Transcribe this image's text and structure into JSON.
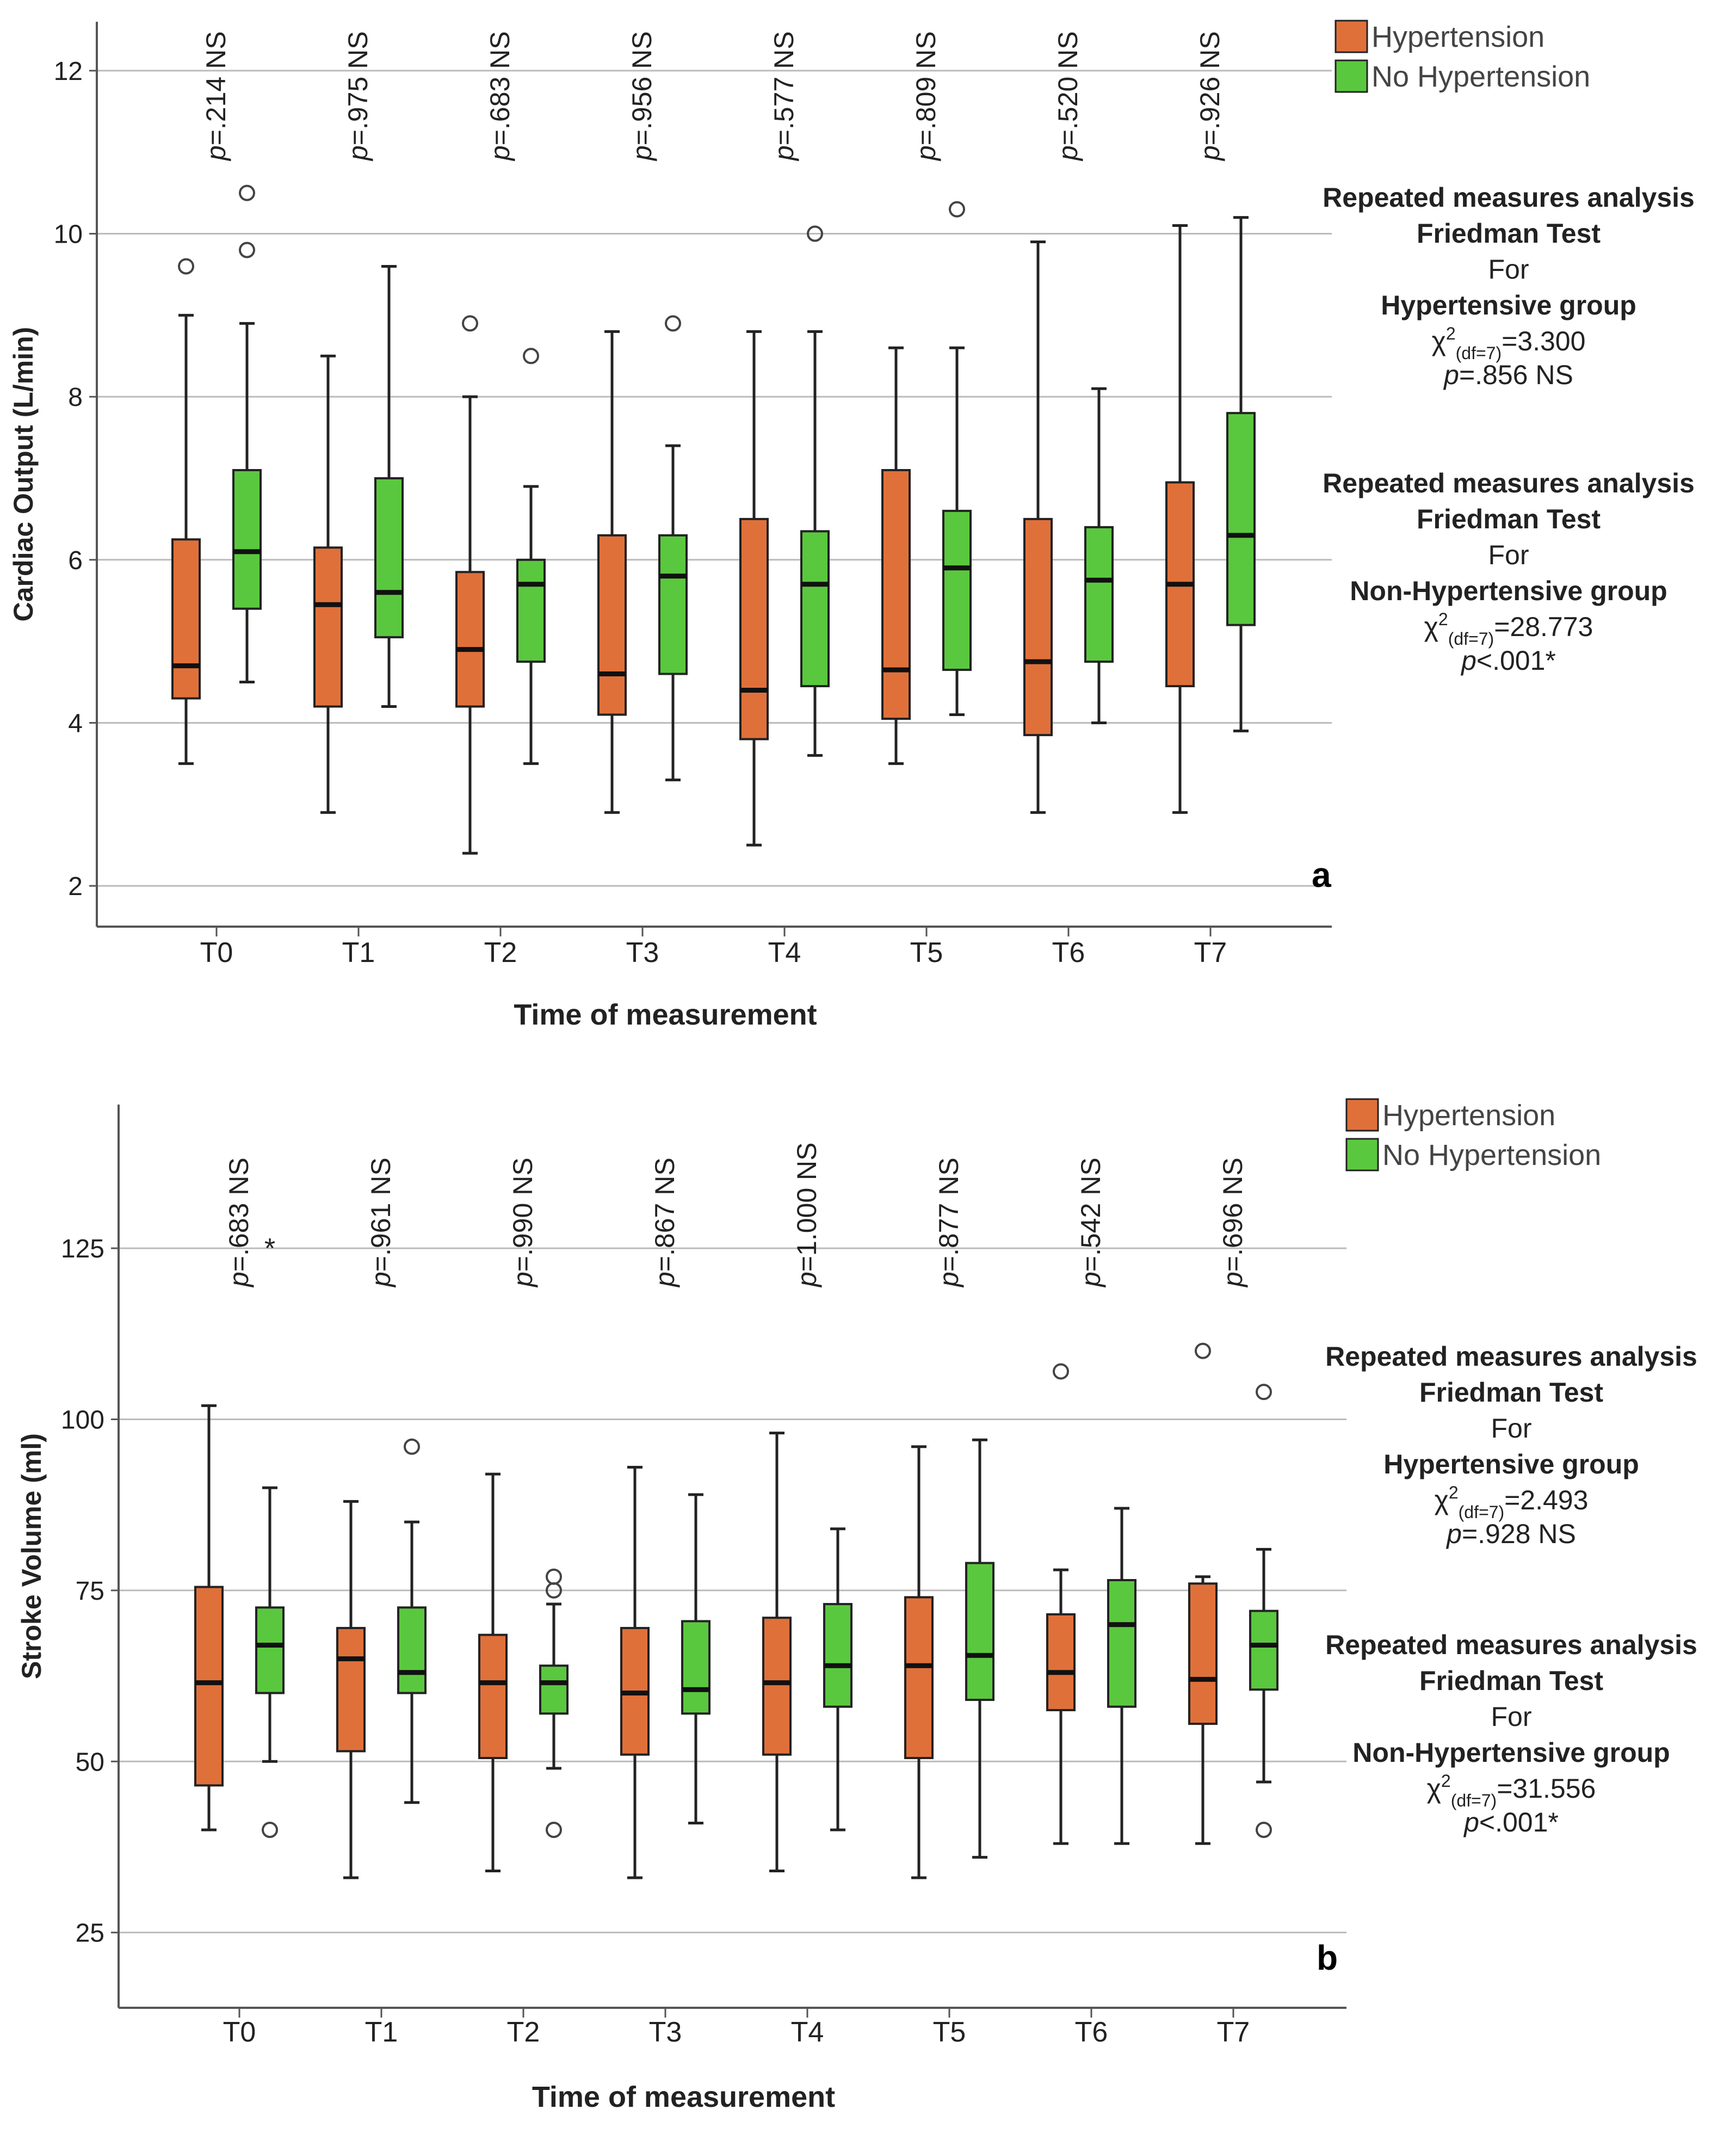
{
  "colors": {
    "hypertension": "#E0703A",
    "no_hypertension": "#5AC83E",
    "box_stroke": "#222222",
    "grid": "#BBBBBB",
    "axis": "#555555"
  },
  "chart_data": [
    {
      "type": "boxplot",
      "panel_label": "a",
      "ylabel": "Cardiac Output (L/min)",
      "xlabel": "Time of measurement",
      "ylim": [
        1.5,
        12.6
      ],
      "yticks": [
        2,
        4,
        6,
        8,
        10,
        12
      ],
      "categories": [
        "T0",
        "T1",
        "T2",
        "T3",
        "T4",
        "T5",
        "T6",
        "T7"
      ],
      "legend": [
        {
          "key": "hypertension",
          "label": "Hypertension"
        },
        {
          "key": "no_hypertension",
          "label": "No Hypertension"
        }
      ],
      "pvalues": [
        {
          "prefix": "p",
          "value": "=.214 NS"
        },
        {
          "prefix": "p",
          "value": "=.975 NS"
        },
        {
          "prefix": "p",
          "value": "=.683 NS"
        },
        {
          "prefix": "p",
          "value": "=.956 NS"
        },
        {
          "prefix": "p",
          "value": "=.577 NS"
        },
        {
          "prefix": "p",
          "value": "=.809 NS"
        },
        {
          "prefix": "p",
          "value": "=.520 NS"
        },
        {
          "prefix": "p",
          "value": "=.926 NS"
        }
      ],
      "series": [
        {
          "name": "Hypertension",
          "key": "hypertension",
          "boxes": [
            {
              "min": 3.5,
              "q1": 4.3,
              "median": 4.7,
              "q3": 6.25,
              "max": 9.0,
              "outliers": [
                9.6
              ]
            },
            {
              "min": 2.9,
              "q1": 4.2,
              "median": 5.45,
              "q3": 6.15,
              "max": 8.5,
              "outliers": []
            },
            {
              "min": 2.4,
              "q1": 4.2,
              "median": 4.9,
              "q3": 5.85,
              "max": 8.0,
              "outliers": [
                8.9
              ]
            },
            {
              "min": 2.9,
              "q1": 4.1,
              "median": 4.6,
              "q3": 6.3,
              "max": 8.8,
              "outliers": []
            },
            {
              "min": 2.5,
              "q1": 3.8,
              "median": 4.4,
              "q3": 6.5,
              "max": 8.8,
              "outliers": []
            },
            {
              "min": 3.5,
              "q1": 4.05,
              "median": 4.65,
              "q3": 7.1,
              "max": 8.6,
              "outliers": []
            },
            {
              "min": 2.9,
              "q1": 3.85,
              "median": 4.75,
              "q3": 6.5,
              "max": 9.9,
              "outliers": []
            },
            {
              "min": 2.9,
              "q1": 4.45,
              "median": 5.7,
              "q3": 6.95,
              "max": 10.1,
              "outliers": []
            }
          ]
        },
        {
          "name": "No Hypertension",
          "key": "no_hypertension",
          "boxes": [
            {
              "min": 4.5,
              "q1": 5.4,
              "median": 6.1,
              "q3": 7.1,
              "max": 8.9,
              "outliers": [
                9.8,
                10.5
              ]
            },
            {
              "min": 4.2,
              "q1": 5.05,
              "median": 5.6,
              "q3": 7.0,
              "max": 9.6,
              "outliers": []
            },
            {
              "min": 3.5,
              "q1": 4.75,
              "median": 5.7,
              "q3": 6.0,
              "max": 6.9,
              "outliers": [
                8.5
              ]
            },
            {
              "min": 3.3,
              "q1": 4.6,
              "median": 5.8,
              "q3": 6.3,
              "max": 7.4,
              "outliers": [
                8.9
              ]
            },
            {
              "min": 3.6,
              "q1": 4.45,
              "median": 5.7,
              "q3": 6.35,
              "max": 8.8,
              "outliers": [
                10.0
              ]
            },
            {
              "min": 4.1,
              "q1": 4.65,
              "median": 5.9,
              "q3": 6.6,
              "max": 8.6,
              "outliers": [
                10.3
              ]
            },
            {
              "min": 4.0,
              "q1": 4.75,
              "median": 5.75,
              "q3": 6.4,
              "max": 8.1,
              "outliers": []
            },
            {
              "min": 3.9,
              "q1": 5.2,
              "median": 6.3,
              "q3": 7.8,
              "max": 10.2,
              "outliers": []
            }
          ]
        }
      ],
      "annotations": [
        {
          "title": "Repeated measures analysis",
          "test": "Friedman Test",
          "for": "For",
          "group": "Hypertensive group",
          "chi_symbol": "χ",
          "chi_sup": "2",
          "chi_sub": "(df=7)",
          "chi_value": "=3.300",
          "p_prefix": "p",
          "p_value": "=.856 NS"
        },
        {
          "title": "Repeated measures analysis",
          "test": "Friedman Test",
          "for": "For",
          "group": "Non-Hypertensive group",
          "chi_symbol": "χ",
          "chi_sup": "2",
          "chi_sub": "(df=7)",
          "chi_value": "=28.773",
          "p_prefix": "p",
          "p_value": "<.001*"
        }
      ]
    },
    {
      "type": "boxplot",
      "panel_label": "b",
      "ylabel": "Stroke Volume (ml)",
      "xlabel": "Time of measurement",
      "ylim": [
        14,
        146
      ],
      "yticks": [
        25,
        50,
        75,
        100,
        125
      ],
      "categories": [
        "T0",
        "T1",
        "T2",
        "T3",
        "T4",
        "T5",
        "T6",
        "T7"
      ],
      "legend": [
        {
          "key": "hypertension",
          "label": "Hypertension"
        },
        {
          "key": "no_hypertension",
          "label": "No Hypertension"
        }
      ],
      "pvalues": [
        {
          "prefix": "p",
          "value": "=.683 NS"
        },
        {
          "prefix": "p",
          "value": "=.961 NS"
        },
        {
          "prefix": "p",
          "value": "=.990 NS"
        },
        {
          "prefix": "p",
          "value": "=.867 NS"
        },
        {
          "prefix": "p",
          "value": "=1.000 NS"
        },
        {
          "prefix": "p",
          "value": "=.877 NS"
        },
        {
          "prefix": "p",
          "value": "=.542 NS"
        },
        {
          "prefix": "p",
          "value": "=.696 NS"
        }
      ],
      "series": [
        {
          "name": "Hypertension",
          "key": "hypertension",
          "boxes": [
            {
              "min": 40,
              "q1": 46.5,
              "median": 61.5,
              "q3": 75.5,
              "max": 102,
              "outliers": []
            },
            {
              "min": 33,
              "q1": 51.5,
              "median": 65,
              "q3": 69.5,
              "max": 88,
              "outliers": []
            },
            {
              "min": 34,
              "q1": 50.5,
              "median": 61.5,
              "q3": 68.5,
              "max": 92,
              "outliers": []
            },
            {
              "min": 33,
              "q1": 51,
              "median": 60,
              "q3": 69.5,
              "max": 93,
              "outliers": []
            },
            {
              "min": 34,
              "q1": 51,
              "median": 61.5,
              "q3": 71,
              "max": 98,
              "outliers": []
            },
            {
              "min": 33,
              "q1": 50.5,
              "median": 64,
              "q3": 74,
              "max": 96,
              "outliers": []
            },
            {
              "min": 38,
              "q1": 57.5,
              "median": 63,
              "q3": 71.5,
              "max": 78,
              "outliers": [
                107
              ]
            },
            {
              "min": 38,
              "q1": 55.5,
              "median": 62,
              "q3": 76,
              "max": 77,
              "outliers": [
                110
              ]
            }
          ]
        },
        {
          "name": "No Hypertension",
          "key": "no_hypertension",
          "boxes": [
            {
              "min": 50,
              "q1": 60,
              "median": 67,
              "q3": 72.5,
              "max": 90,
              "outliers": [
                40
              ],
              "extremes": [
                125
              ]
            },
            {
              "min": 44,
              "q1": 60,
              "median": 63,
              "q3": 72.5,
              "max": 85,
              "outliers": [
                96
              ]
            },
            {
              "min": 49,
              "q1": 57,
              "median": 61.5,
              "q3": 64,
              "max": 73,
              "outliers": [
                40,
                75,
                77
              ]
            },
            {
              "min": 41,
              "q1": 57,
              "median": 60.5,
              "q3": 70.5,
              "max": 89,
              "outliers": []
            },
            {
              "min": 40,
              "q1": 58,
              "median": 64,
              "q3": 73,
              "max": 84,
              "outliers": []
            },
            {
              "min": 36,
              "q1": 59,
              "median": 65.5,
              "q3": 79,
              "max": 97,
              "outliers": []
            },
            {
              "min": 38,
              "q1": 58,
              "median": 70,
              "q3": 76.5,
              "max": 87,
              "outliers": []
            },
            {
              "min": 47,
              "q1": 60.5,
              "median": 67,
              "q3": 72,
              "max": 81,
              "outliers": [
                40,
                104
              ]
            }
          ]
        }
      ],
      "annotations": [
        {
          "title": "Repeated measures analysis",
          "test": "Friedman Test",
          "for": "For",
          "group": "Hypertensive group",
          "chi_symbol": "χ",
          "chi_sup": "2",
          "chi_sub": "(df=7)",
          "chi_value": "=2.493",
          "p_prefix": "p",
          "p_value": "=.928 NS"
        },
        {
          "title": "Repeated measures analysis",
          "test": "Friedman Test",
          "for": "For",
          "group": "Non-Hypertensive group",
          "chi_symbol": "χ",
          "chi_sup": "2",
          "chi_sub": "(df=7)",
          "chi_value": "=31.556",
          "p_prefix": "p",
          "p_value": "<.001*"
        }
      ]
    }
  ]
}
